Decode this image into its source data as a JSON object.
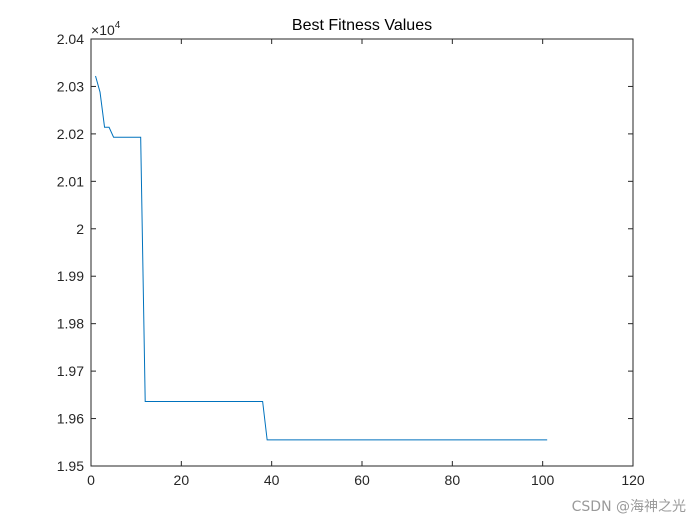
{
  "chart_data": {
    "type": "line",
    "title": "Best Fitness Values",
    "xlabel": "",
    "ylabel": "",
    "xlim": [
      0,
      120
    ],
    "ylim": [
      1.95,
      2.04
    ],
    "x_ticks": [
      0,
      20,
      40,
      60,
      80,
      100,
      120
    ],
    "y_ticks": [
      1.95,
      1.96,
      1.97,
      1.98,
      1.99,
      2,
      2.01,
      2.02,
      2.03,
      2.04
    ],
    "x_tick_labels": [
      "0",
      "20",
      "40",
      "60",
      "80",
      "100",
      "120"
    ],
    "y_tick_labels": [
      "1.95",
      "1.96",
      "1.97",
      "1.98",
      "1.99",
      "2",
      "2.01",
      "2.02",
      "2.03",
      "2.04"
    ],
    "y_multiplier_base": "10",
    "y_multiplier_exponent": "4",
    "grid": false,
    "line_color": "#0072BD",
    "series": [
      {
        "x": [
          1,
          2,
          3,
          4,
          5,
          6,
          7,
          8,
          9,
          10,
          11,
          12,
          13,
          14,
          15,
          16,
          17,
          18,
          19,
          20,
          21,
          22,
          23,
          24,
          25,
          26,
          27,
          28,
          29,
          30,
          31,
          32,
          33,
          34,
          35,
          36,
          37,
          38,
          39,
          40,
          41,
          42,
          43,
          44,
          45,
          46,
          47,
          48,
          49,
          50,
          51,
          52,
          53,
          54,
          55,
          56,
          57,
          58,
          59,
          60,
          61,
          62,
          63,
          64,
          65,
          66,
          67,
          68,
          69,
          70,
          71,
          72,
          73,
          74,
          75,
          76,
          77,
          78,
          79,
          80,
          81,
          82,
          83,
          84,
          85,
          86,
          87,
          88,
          89,
          90,
          91,
          92,
          93,
          94,
          95,
          96,
          97,
          98,
          99,
          100,
          101
        ],
        "values": [
          2.0322,
          2.0288,
          2.0214,
          2.0214,
          2.0193,
          2.0193,
          2.0193,
          2.0193,
          2.0193,
          2.0193,
          2.0193,
          1.9636,
          1.9636,
          1.9636,
          1.9636,
          1.9636,
          1.9636,
          1.9636,
          1.9636,
          1.9636,
          1.9636,
          1.9636,
          1.9636,
          1.9636,
          1.9636,
          1.9636,
          1.9636,
          1.9636,
          1.9636,
          1.9636,
          1.9636,
          1.9636,
          1.9636,
          1.9636,
          1.9636,
          1.9636,
          1.9636,
          1.9636,
          1.9555,
          1.9555,
          1.9555,
          1.9555,
          1.9555,
          1.9555,
          1.9555,
          1.9555,
          1.9555,
          1.9555,
          1.9555,
          1.9555,
          1.9555,
          1.9555,
          1.9555,
          1.9555,
          1.9555,
          1.9555,
          1.9555,
          1.9555,
          1.9555,
          1.9555,
          1.9555,
          1.9555,
          1.9555,
          1.9555,
          1.9555,
          1.9555,
          1.9555,
          1.9555,
          1.9555,
          1.9555,
          1.9555,
          1.9555,
          1.9555,
          1.9555,
          1.9555,
          1.9555,
          1.9555,
          1.9555,
          1.9555,
          1.9555,
          1.9555,
          1.9555,
          1.9555,
          1.9555,
          1.9555,
          1.9555,
          1.9555,
          1.9555,
          1.9555,
          1.9555,
          1.9555,
          1.9555,
          1.9555,
          1.9555,
          1.9555,
          1.9555,
          1.9555,
          1.9555,
          1.9555,
          1.9555,
          1.9555
        ]
      }
    ]
  },
  "watermark": "CSDN @海神之光"
}
